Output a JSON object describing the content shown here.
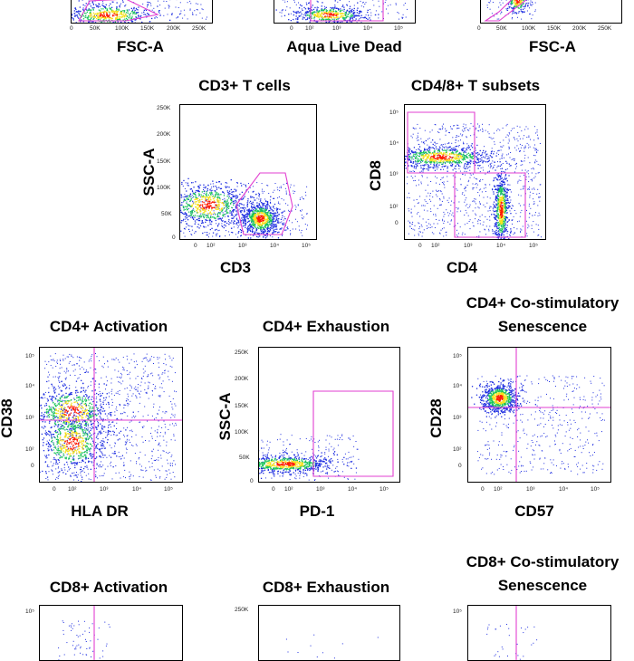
{
  "figure": {
    "colors": {
      "gate": "#e23fd0",
      "hi": "#ff1a00",
      "mid": "#f6e11a",
      "lo": "#19c45a",
      "low": "#1d2de0"
    }
  },
  "chart_data": [
    {
      "type": "scatter",
      "id": "top1",
      "title": "",
      "xlabel": "FSC-A",
      "ylabel": "",
      "xticks": [
        "0",
        "50K",
        "100K",
        "150K",
        "200K",
        "250K"
      ],
      "yticks": [],
      "gate": "polygon"
    },
    {
      "type": "scatter",
      "id": "top2",
      "title": "",
      "xlabel": "Aqua Live Dead",
      "ylabel": "",
      "xticks": [
        "0",
        "10²",
        "10³",
        "10⁴",
        "10⁵"
      ],
      "yticks": [],
      "gate": "rectangle"
    },
    {
      "type": "scatter",
      "id": "top3",
      "title": "",
      "xlabel": "FSC-A",
      "ylabel": "",
      "xticks": [
        "0",
        "50K",
        "100K",
        "150K",
        "200K",
        "250K"
      ],
      "yticks": [],
      "gate": "polygon"
    },
    {
      "type": "scatter",
      "id": "cd3",
      "title": "CD3+ T cells",
      "xlabel": "CD3",
      "ylabel": "SSC-A",
      "xticks": [
        "0",
        "10²",
        "10³",
        "10⁴",
        "10⁵"
      ],
      "yticks": [
        "250K",
        "200K",
        "150K",
        "100K",
        "50K",
        "0"
      ],
      "gate": "polygon"
    },
    {
      "type": "scatter",
      "id": "cd48",
      "title": "CD4/8+ T subsets",
      "xlabel": "CD4",
      "ylabel": "CD8",
      "xticks": [
        "0",
        "10²",
        "10³",
        "10⁴",
        "10⁵"
      ],
      "yticks": [
        "10⁵",
        "10⁴",
        "10³",
        "10²",
        "0"
      ],
      "gate": "two rectangles"
    },
    {
      "type": "scatter",
      "id": "cd4act",
      "title": "CD4+ Activation",
      "xlabel": "HLA DR",
      "ylabel": "CD38",
      "xticks": [
        "0",
        "10²",
        "10³",
        "10⁴",
        "10⁵"
      ],
      "yticks": [
        "10⁵",
        "10⁴",
        "10³",
        "10²",
        "0"
      ],
      "gate": "quadrant"
    },
    {
      "type": "scatter",
      "id": "cd4exh",
      "title": "CD4+ Exhaustion",
      "xlabel": "PD-1",
      "ylabel": "SSC-A",
      "xticks": [
        "0",
        "10²",
        "10³",
        "10⁴",
        "10⁵"
      ],
      "yticks": [
        "250K",
        "200K",
        "150K",
        "100K",
        "50K",
        "0"
      ],
      "gate": "rectangle"
    },
    {
      "type": "scatter",
      "id": "cd4cos",
      "title": "CD4+ Co-stimulatory Senescence",
      "xlabel": "CD57",
      "ylabel": "CD28",
      "xticks": [
        "0",
        "10²",
        "10³",
        "10⁴",
        "10⁵"
      ],
      "yticks": [
        "10⁵",
        "10⁴",
        "10³",
        "10²",
        "0"
      ],
      "gate": "quadrant"
    },
    {
      "type": "scatter",
      "id": "cd8act",
      "title": "CD8+ Activation",
      "xlabel": "",
      "ylabel": "",
      "xticks": [],
      "yticks": [
        "10⁵"
      ],
      "gate": "quadrant"
    },
    {
      "type": "scatter",
      "id": "cd8exh",
      "title": "CD8+ Exhaustion",
      "xlabel": "",
      "ylabel": "",
      "xticks": [],
      "yticks": [
        "250K"
      ],
      "gate": "rectangle"
    },
    {
      "type": "scatter",
      "id": "cd8cos",
      "title": "CD8+ Co-stimulatory Senescence",
      "xlabel": "",
      "ylabel": "",
      "xticks": [],
      "yticks": [
        "10⁵"
      ],
      "gate": "quadrant"
    }
  ],
  "titles": {
    "cd3": "CD3+ T cells",
    "cd48": "CD4/8+ T subsets",
    "cd4act": "CD4+ Activation",
    "cd4exh": "CD4+ Exhaustion",
    "cd4cos_1": "CD4+ Co-stimulatory",
    "cd4cos_2": "Senescence",
    "cd8act": "CD8+ Activation",
    "cd8exh": "CD8+ Exhaustion",
    "cd8cos_1": "CD8+ Co-stimulatory",
    "cd8cos_2": "Senescence"
  },
  "labels": {
    "top1_x": "FSC-A",
    "top2_x": "Aqua Live Dead",
    "top3_x": "FSC-A",
    "cd3_x": "CD3",
    "cd3_y": "SSC-A",
    "cd48_x": "CD4",
    "cd48_y": "CD8",
    "cd4act_x": "HLA DR",
    "cd4act_y": "CD38",
    "cd4exh_x": "PD-1",
    "cd4exh_y": "SSC-A",
    "cd4cos_x": "CD57",
    "cd4cos_y": "CD28"
  }
}
